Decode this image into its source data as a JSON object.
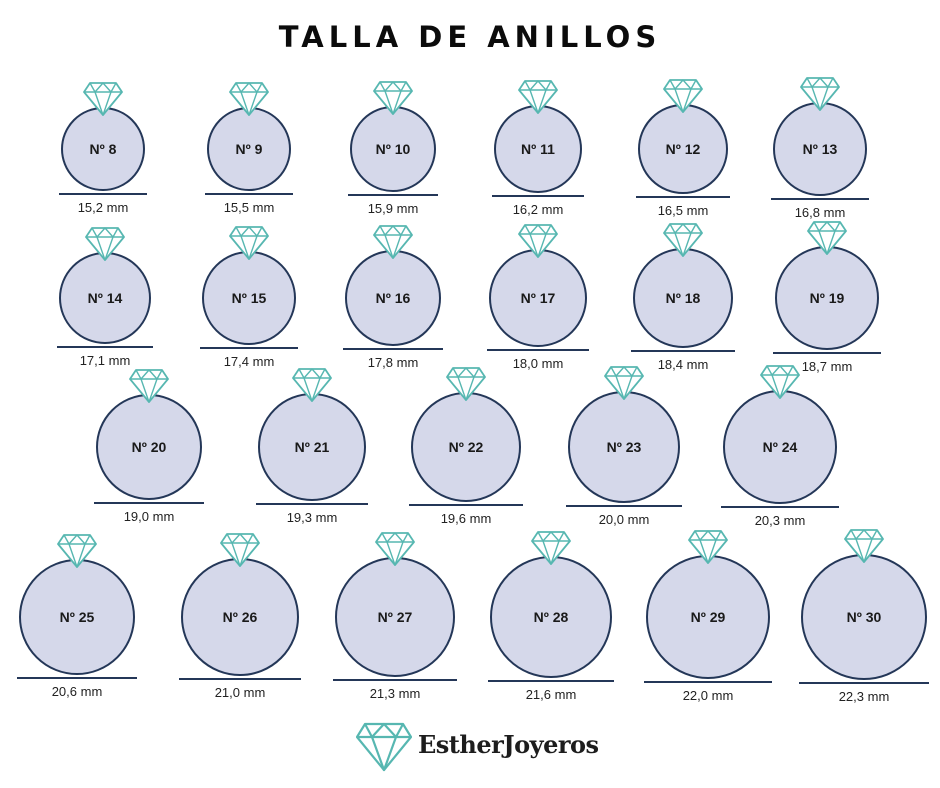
{
  "title": "TALLA DE ANILLOS",
  "brand": {
    "name": "EstherJoyeros",
    "icon": "diamond-icon",
    "gem_color": "#57b7b1"
  },
  "colors": {
    "circle_fill": "#d5d8ea",
    "circle_stroke": "#243758",
    "gem_stroke": "#57b7b1"
  },
  "rings": [
    {
      "label": "Nº 8",
      "mm": "15,2 mm"
    },
    {
      "label": "Nº 9",
      "mm": "15,5 mm"
    },
    {
      "label": "Nº 10",
      "mm": "15,9 mm"
    },
    {
      "label": "Nº 11",
      "mm": "16,2 mm"
    },
    {
      "label": "Nº 12",
      "mm": "16,5 mm"
    },
    {
      "label": "Nº 13",
      "mm": "16,8 mm"
    },
    {
      "label": "Nº 14",
      "mm": "17,1 mm"
    },
    {
      "label": "Nº 15",
      "mm": "17,4 mm"
    },
    {
      "label": "Nº 16",
      "mm": "17,8 mm"
    },
    {
      "label": "Nº 17",
      "mm": "18,0 mm"
    },
    {
      "label": "Nº 18",
      "mm": "18,4 mm"
    },
    {
      "label": "Nº 19",
      "mm": "18,7 mm"
    },
    {
      "label": "Nº 20",
      "mm": "19,0 mm"
    },
    {
      "label": "Nº 21",
      "mm": "19,3 mm"
    },
    {
      "label": "Nº 22",
      "mm": "19,6 mm"
    },
    {
      "label": "Nº 23",
      "mm": "20,0 mm"
    },
    {
      "label": "Nº 24",
      "mm": "20,3 mm"
    },
    {
      "label": "Nº 25",
      "mm": "20,6 mm"
    },
    {
      "label": "Nº 26",
      "mm": "21,0 mm"
    },
    {
      "label": "Nº 27",
      "mm": "21,3 mm"
    },
    {
      "label": "Nº 28",
      "mm": "21,6 mm"
    },
    {
      "label": "Nº 29",
      "mm": "22,0 mm"
    },
    {
      "label": "Nº 30",
      "mm": "22,3 mm"
    }
  ]
}
